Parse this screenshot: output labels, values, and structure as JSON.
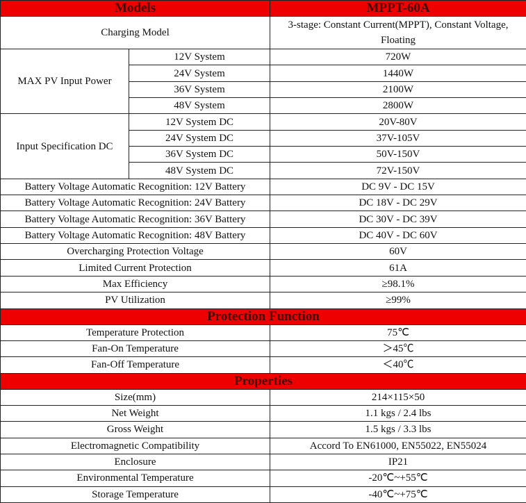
{
  "colors": {
    "header_bg": "#ee0000",
    "header_text": "#4a0000"
  },
  "header": {
    "models_label": "Models",
    "model_name": "MPPT-60A"
  },
  "charging_model": {
    "label": "Charging Model",
    "value": "3-stage: Constant Current(MPPT), Constant Voltage, Floating"
  },
  "max_pv": {
    "label": "MAX PV Input Power",
    "rows": [
      {
        "system": "12V System",
        "value": "720W"
      },
      {
        "system": "24V System",
        "value": "1440W"
      },
      {
        "system": "36V System",
        "value": "2100W"
      },
      {
        "system": "48V System",
        "value": "2800W"
      }
    ]
  },
  "input_spec": {
    "label": "Input Specification DC",
    "rows": [
      {
        "system": "12V System DC",
        "value": "20V-80V"
      },
      {
        "system": "24V System DC",
        "value": "37V-105V"
      },
      {
        "system": "36V System DC",
        "value": "50V-150V"
      },
      {
        "system": "48V System DC",
        "value": "72V-150V"
      }
    ]
  },
  "specs": [
    {
      "label": "Battery Voltage Automatic Recognition: 12V Battery",
      "value": "DC 9V - DC 15V"
    },
    {
      "label": "Battery Voltage Automatic Recognition: 24V Battery",
      "value": "DC 18V - DC 29V"
    },
    {
      "label": "Battery Voltage Automatic Recognition: 36V Battery",
      "value": "DC 30V - DC 39V"
    },
    {
      "label": "Battery Voltage Automatic Recognition: 48V Battery",
      "value": "DC 40V - DC 60V"
    },
    {
      "label": "Overcharging Protection Voltage",
      "value": "60V"
    },
    {
      "label": "Limited Current Protection",
      "value": "61A"
    },
    {
      "label": "Max Efficiency",
      "value": "≥98.1%"
    },
    {
      "label": "PV Utilization",
      "value": "≥99%"
    }
  ],
  "protection": {
    "title": "Protection Function",
    "rows": [
      {
        "label": "Temperature Protection",
        "value": "75℃"
      },
      {
        "label": "Fan-On Temperature",
        "value": "＞45℃"
      },
      {
        "label": "Fan-Off Temperature",
        "value": "＜40℃"
      }
    ]
  },
  "properties": {
    "title": "Properties",
    "rows": [
      {
        "label": "Size(mm)",
        "value": "214×115×50"
      },
      {
        "label": "Net Weight",
        "value": "1.1 kgs / 2.4 lbs"
      },
      {
        "label": "Gross Weight",
        "value": "1.5 kgs / 3.3 lbs"
      },
      {
        "label": "Electromagnetic Compatibility",
        "value": "Accord To EN61000, EN55022, EN55024"
      },
      {
        "label": "Enclosure",
        "value": "IP21"
      },
      {
        "label": "Environmental Temperature",
        "value": "-20℃~+55℃"
      },
      {
        "label": "Storage Temperature",
        "value": "-40℃~+75℃"
      }
    ]
  }
}
